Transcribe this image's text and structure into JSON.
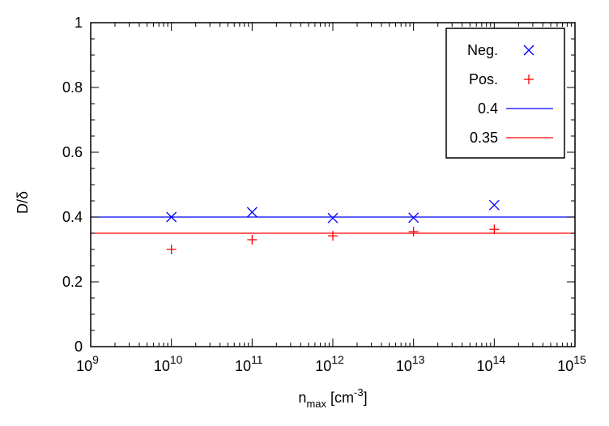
{
  "chart_data": {
    "type": "scatter",
    "xlabel": {
      "base": "n",
      "sub": "max",
      "unit": " [cm",
      "sup": "-3",
      "close": "]"
    },
    "ylabel": "D/δ",
    "x_scale": "log",
    "xlim": [
      1000000000.0,
      1000000000000000.0
    ],
    "ylim": [
      0,
      1
    ],
    "x_ticks": [
      {
        "base": "10",
        "exp": "9",
        "value": 1000000000.0
      },
      {
        "base": "10",
        "exp": "10",
        "value": 10000000000.0
      },
      {
        "base": "10",
        "exp": "11",
        "value": 100000000000.0
      },
      {
        "base": "10",
        "exp": "12",
        "value": 1000000000000.0
      },
      {
        "base": "10",
        "exp": "13",
        "value": 10000000000000.0
      },
      {
        "base": "10",
        "exp": "14",
        "value": 100000000000000.0
      },
      {
        "base": "10",
        "exp": "15",
        "value": 1000000000000000.0
      }
    ],
    "y_ticks": [
      {
        "label": "0",
        "value": 0
      },
      {
        "label": "0.2",
        "value": 0.2
      },
      {
        "label": "0.4",
        "value": 0.4
      },
      {
        "label": "0.6",
        "value": 0.6
      },
      {
        "label": "0.8",
        "value": 0.8
      },
      {
        "label": "1",
        "value": 1
      }
    ],
    "series": [
      {
        "name": "Neg.",
        "marker": "x",
        "color": "#0000ff",
        "x": [
          10000000000.0,
          100000000000.0,
          1000000000000.0,
          10000000000000.0,
          100000000000000.0
        ],
        "y": [
          0.4,
          0.415,
          0.397,
          0.398,
          0.437
        ]
      },
      {
        "name": "Pos.",
        "marker": "+",
        "color": "#ff0000",
        "x": [
          10000000000.0,
          100000000000.0,
          1000000000000.0,
          10000000000000.0,
          100000000000000.0
        ],
        "y": [
          0.3,
          0.33,
          0.342,
          0.355,
          0.362
        ]
      }
    ],
    "lines": [
      {
        "name": "0.4",
        "y": 0.4,
        "color": "#0000ff"
      },
      {
        "name": "0.35",
        "y": 0.35,
        "color": "#ff0000"
      }
    ],
    "legend_position": "top-right",
    "grid": false
  }
}
